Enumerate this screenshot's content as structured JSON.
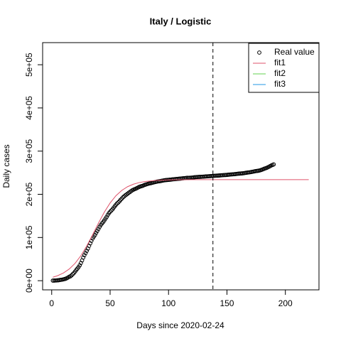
{
  "chart_data": {
    "type": "scatter",
    "title": "Italy / Logistic",
    "x_label": "Days since 2020-02-24",
    "y_label": "Daily cases",
    "xlim": [
      -7.76,
      228.76
    ],
    "ylim": [
      -21200,
      551200
    ],
    "xticks": [
      0,
      50,
      100,
      150,
      200
    ],
    "yticks": [
      {
        "value": 0,
        "label": "0e+00"
      },
      {
        "value": 100000,
        "label": "1e+05"
      },
      {
        "value": 200000,
        "label": "2e+05"
      },
      {
        "value": 300000,
        "label": "3e+05"
      },
      {
        "value": 400000,
        "label": "4e+05"
      },
      {
        "value": 500000,
        "label": "5e+05"
      }
    ],
    "vline": 138,
    "legend_position": "topright",
    "legend": [
      {
        "label": "Real value",
        "color": "#000000",
        "symbol": "circle"
      },
      {
        "label": "fit1",
        "color": "#DF536B",
        "symbol": "line"
      },
      {
        "label": "fit2",
        "color": "#61D04F",
        "symbol": "line"
      },
      {
        "label": "fit3",
        "color": "#2297E6",
        "symbol": "line"
      }
    ],
    "series": [
      {
        "name": "Real value",
        "color": "#000000",
        "kind": "points",
        "x": [
          1,
          2,
          3,
          4,
          5,
          6,
          7,
          8,
          9,
          10,
          11,
          12,
          13,
          14,
          15,
          16,
          17,
          18,
          19,
          20,
          21,
          22,
          23,
          24,
          25,
          26,
          27,
          28,
          29,
          30,
          31,
          32,
          33,
          34,
          35,
          36,
          37,
          38,
          39,
          40,
          41,
          42,
          43,
          44,
          45,
          46,
          47,
          48,
          49,
          50,
          51,
          52,
          53,
          54,
          55,
          56,
          57,
          58,
          59,
          60,
          61,
          62,
          63,
          64,
          65,
          66,
          67,
          68,
          69,
          70,
          71,
          72,
          73,
          74,
          75,
          76,
          77,
          78,
          79,
          80,
          81,
          82,
          83,
          84,
          85,
          86,
          87,
          88,
          89,
          90,
          91,
          92,
          93,
          94,
          95,
          96,
          97,
          98,
          99,
          100,
          101,
          102,
          103,
          104,
          105,
          106,
          107,
          108,
          109,
          110,
          111,
          112,
          113,
          114,
          115,
          116,
          117,
          118,
          119,
          120,
          121,
          122,
          123,
          124,
          125,
          126,
          127,
          128,
          129,
          130,
          131,
          132,
          133,
          134,
          135,
          136,
          137,
          138,
          139,
          140,
          141,
          142,
          143,
          144,
          145,
          146,
          147,
          148,
          149,
          150,
          151,
          152,
          153,
          154,
          155,
          156,
          157,
          158,
          159,
          160,
          161,
          162,
          163,
          164,
          165,
          166,
          167,
          168,
          169,
          170,
          171,
          172,
          173,
          174,
          175,
          176,
          177,
          178,
          179,
          180,
          181,
          182,
          183,
          184,
          185,
          186,
          187,
          188,
          189,
          190
        ],
        "values": [
          229,
          322,
          400,
          650,
          888,
          1128,
          1694,
          2036,
          2502,
          3089,
          3858,
          4636,
          5883,
          7375,
          9172,
          10149,
          12462,
          15113,
          17660,
          21157,
          24747,
          27980,
          31506,
          35713,
          41035,
          47021,
          53578,
          59138,
          63927,
          69176,
          74386,
          80589,
          86498,
          92472,
          97689,
          101739,
          105792,
          110574,
          115242,
          119827,
          124632,
          128948,
          132547,
          135586,
          139422,
          143626,
          147577,
          152271,
          156363,
          159516,
          162488,
          165155,
          168941,
          172434,
          175925,
          178972,
          181228,
          183957,
          187327,
          189973,
          192994,
          195351,
          197675,
          199414,
          201505,
          203591,
          205463,
          207428,
          209328,
          210717,
          211938,
          213013,
          214457,
          215858,
          217185,
          218268,
          219070,
          219814,
          221216,
          222104,
          223096,
          223885,
          224760,
          225435,
          225886,
          226699,
          227364,
          228006,
          228658,
          229327,
          229858,
          230158,
          230555,
          231139,
          231732,
          232248,
          232664,
          232997,
          233197,
          233515,
          233836,
          234013,
          234531,
          234801,
          234998,
          235278,
          235561,
          235763,
          236142,
          236305,
          236651,
          236989,
          237290,
          237500,
          237828,
          238159,
          238011,
          238275,
          238499,
          238720,
          238833,
          239410,
          239706,
          239961,
          240136,
          240310,
          240436,
          240578,
          240760,
          240961,
          241184,
          241419,
          241611,
          241819,
          241956,
          242149,
          242363,
          242639,
          242827,
          243061,
          243230,
          243344,
          243506,
          243736,
          243967,
          244216,
          244434,
          244624,
          244752,
          244990,
          245338,
          245590,
          245864,
          246118,
          246286,
          246488,
          246776,
          247158,
          247537,
          247832,
          248070,
          248229,
          248419,
          248803,
          249204,
          249756,
          250103,
          250566,
          250825,
          251237,
          251713,
          252235,
          252809,
          253438,
          253915,
          254235,
          254636,
          255278,
          256118,
          257065,
          258136,
          259345,
          260298,
          261174,
          262540,
          263949,
          265409,
          266853,
          267972,
          269214
        ]
      },
      {
        "name": "fit1",
        "color": "#DF536B",
        "kind": "line",
        "x": [
          1,
          5,
          10,
          15,
          20,
          25,
          30,
          35,
          40,
          45,
          50,
          55,
          60,
          65,
          70,
          75,
          80,
          90,
          100,
          110,
          120,
          140,
          160,
          180,
          200,
          220
        ],
        "values": [
          8057,
          11493,
          17754,
          27000,
          40137,
          57921,
          80357,
          106219,
          133182,
          158429,
          180000,
          196804,
          209118,
          217715,
          223473,
          227273,
          229716,
          232283,
          233316,
          233729,
          233892,
          233983,
          233997,
          234000,
          234000,
          234000
        ]
      }
    ]
  }
}
